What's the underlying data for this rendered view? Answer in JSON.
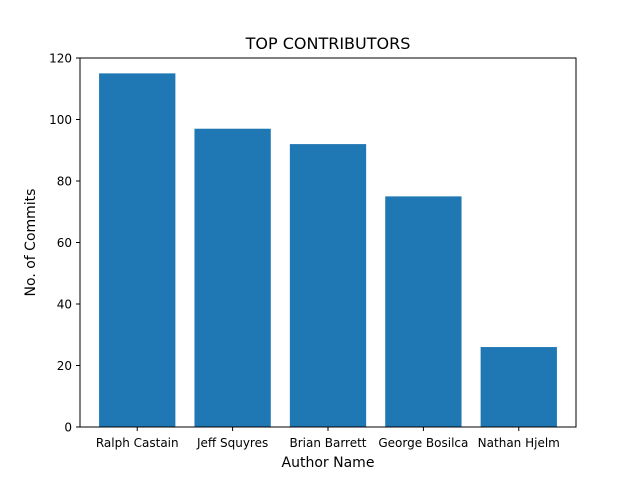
{
  "chart_data": {
    "type": "bar",
    "title": "TOP CONTRIBUTORS",
    "xlabel": "Author Name",
    "ylabel": "No. of Commits",
    "categories": [
      "Ralph Castain",
      "Jeff Squyres",
      "Brian Barrett",
      "George Bosilca",
      "Nathan Hjelm"
    ],
    "values": [
      115,
      97,
      92,
      75,
      26
    ],
    "ylim": [
      0,
      120
    ],
    "yticks": [
      0,
      20,
      40,
      60,
      80,
      100,
      120
    ],
    "grid": false,
    "legend": "none",
    "bar_color": "#1f77b4"
  }
}
